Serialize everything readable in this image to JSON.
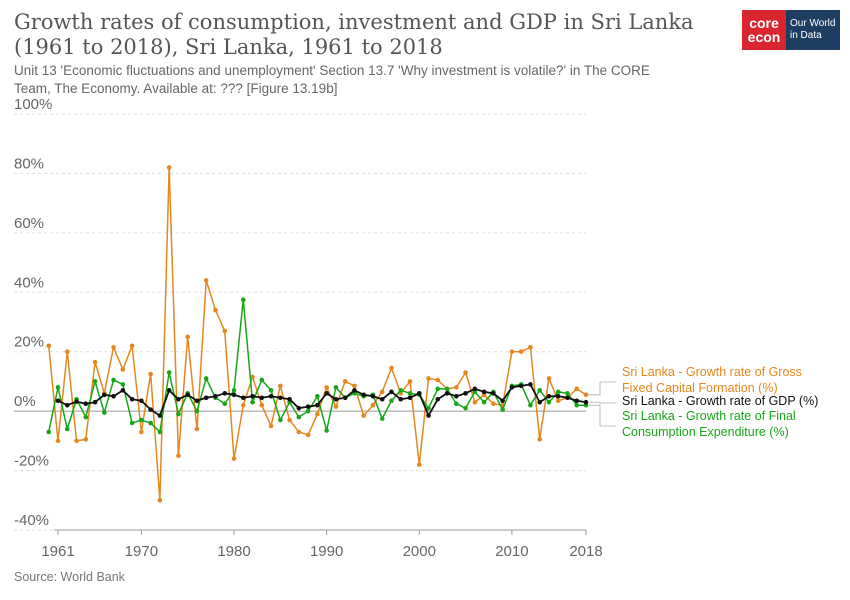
{
  "header": {
    "title": "Growth rates of consumption, investment and GDP in Sri Lanka (1961 to 2018), Sri Lanka, 1961 to 2018",
    "subtitle": "Unit 13 'Economic fluctuations and unemployment' Section 13.7 'Why investment is volatile?' in The CORE Team, The Economy. Available at: ??? [Figure 13.19b]"
  },
  "logo": {
    "core_top": "core",
    "core_bottom": "econ",
    "owid": "Our World in Data"
  },
  "footer": {
    "source": "Source: World Bank"
  },
  "colors": {
    "gfcf": "#e5871e",
    "gdp": "#111111",
    "final": "#17a617",
    "grid": "#dddddd",
    "zero": "#999999"
  },
  "chart_data": {
    "type": "line",
    "title": "Growth rates of consumption, investment and GDP in Sri Lanka (1961 to 2018), Sri Lanka, 1961 to 2018",
    "xlim": [
      1961,
      2018
    ],
    "ylim": [
      -40,
      100
    ],
    "x_ticks": [
      1961,
      1970,
      1980,
      1990,
      2000,
      2010,
      2018
    ],
    "y_ticks": [
      -40,
      -20,
      0,
      20,
      40,
      60,
      80,
      100
    ],
    "y_tick_labels": [
      "-40%",
      "-20%",
      "0%",
      "20%",
      "40%",
      "60%",
      "80%",
      "100%"
    ],
    "grid": "horizontal dotted",
    "legend": "right, at line ends",
    "x": [
      1960,
      1961,
      1962,
      1963,
      1964,
      1965,
      1966,
      1967,
      1968,
      1969,
      1970,
      1971,
      1972,
      1973,
      1974,
      1975,
      1976,
      1977,
      1978,
      1979,
      1980,
      1981,
      1982,
      1983,
      1984,
      1985,
      1986,
      1987,
      1988,
      1989,
      1990,
      1991,
      1992,
      1993,
      1994,
      1995,
      1996,
      1997,
      1998,
      1999,
      2000,
      2001,
      2002,
      2003,
      2004,
      2005,
      2006,
      2007,
      2008,
      2009,
      2010,
      2011,
      2012,
      2013,
      2014,
      2015,
      2016,
      2017,
      2018
    ],
    "series": [
      {
        "name": "Sri Lanka - Growth rate of Gross Fixed Capital Formation (%)",
        "color_key": "gfcf",
        "values": [
          22,
          -10,
          20,
          -10,
          -9.5,
          16.5,
          6,
          21.5,
          14,
          22,
          -7,
          12.5,
          -30,
          82,
          -15,
          25,
          -6,
          44,
          34,
          27,
          -16,
          2,
          11.5,
          2,
          -5,
          8.5,
          -3,
          -7,
          -8,
          -1,
          8,
          1.5,
          10,
          8.5,
          -1.5,
          2,
          6.5,
          14.5,
          6,
          10,
          -18,
          11,
          10.5,
          7.5,
          8,
          13,
          3,
          5.5,
          2.5,
          2,
          20,
          20,
          21.5,
          -9.5,
          11,
          3.5,
          4.5,
          7.5,
          5.5
        ]
      },
      {
        "name": "Sri Lanka - Growth rate of GDP (%)",
        "color_key": "gdp",
        "values": [
          null,
          3.5,
          2,
          3.2,
          2.5,
          3,
          5.5,
          5,
          7,
          4,
          3.5,
          0.5,
          -1.5,
          7,
          4,
          5.5,
          3.5,
          4.5,
          5,
          6,
          5.5,
          4.5,
          5,
          4.5,
          5,
          4.5,
          4,
          1,
          1.5,
          2,
          6,
          4,
          4.5,
          7,
          5.5,
          5,
          4,
          6.5,
          4,
          4.5,
          6,
          -1.5,
          4,
          6,
          5,
          6,
          7.5,
          6.5,
          6,
          3.5,
          8,
          8.5,
          9,
          3,
          5,
          5,
          4.5,
          3.5,
          3
        ]
      },
      {
        "name": "Sri Lanka - Growth rate of Final Consumption Expenditure (%)",
        "color_key": "final",
        "values": [
          -7,
          8,
          -6,
          4,
          -2,
          10,
          -0.5,
          10.5,
          9,
          -4,
          -3,
          -4,
          -7,
          13,
          -1,
          6,
          0,
          11,
          4.5,
          2.5,
          7,
          37.5,
          3,
          10.5,
          7,
          -3,
          3,
          -2,
          0,
          5,
          -6.5,
          8,
          4.5,
          6,
          5,
          5.5,
          -2.5,
          3.5,
          7,
          6,
          5.5,
          1,
          7.5,
          7.5,
          2.5,
          1,
          6.5,
          3,
          6.5,
          0.5,
          8.5,
          9,
          2,
          7,
          3,
          6.5,
          6,
          2,
          2
        ]
      }
    ]
  }
}
